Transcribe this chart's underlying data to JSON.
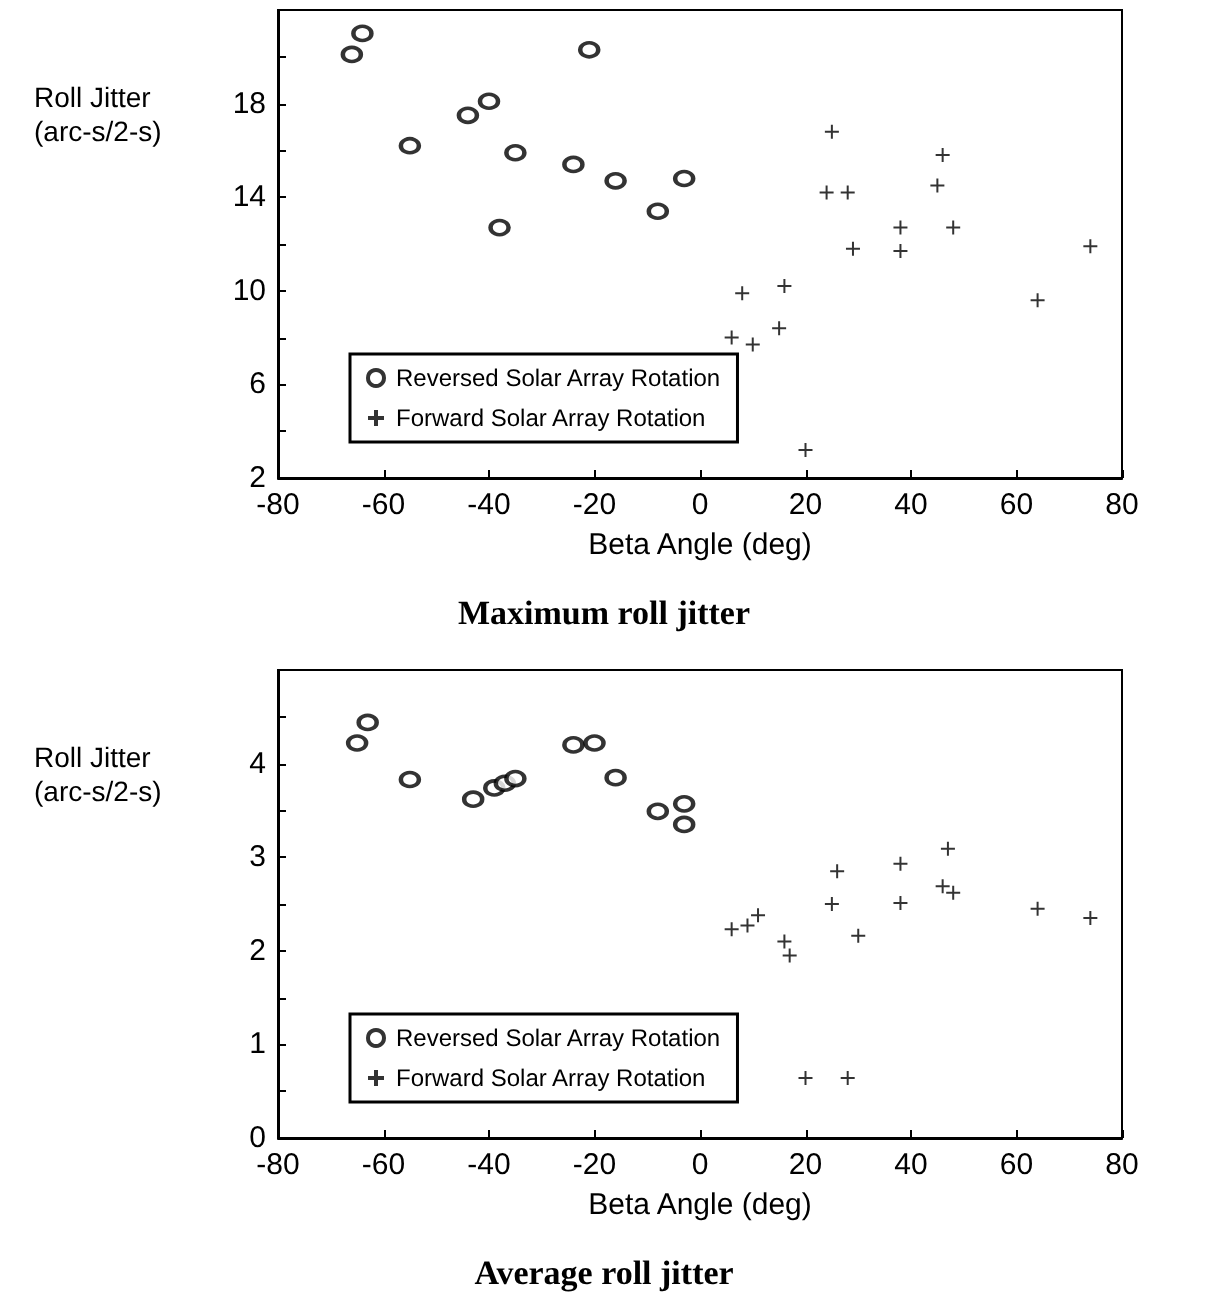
{
  "chart_data": [
    {
      "type": "scatter",
      "title": "Maximum roll jitter",
      "xlabel": "Beta Angle (deg)",
      "ylabel": "Roll Jitter\n(arc-s/2-s)",
      "series": [
        {
          "name": "Reversed Solar Array Rotation",
          "color": "#000000",
          "marker": "circle",
          "x": [
            -66,
            -64,
            -55,
            -44,
            -40,
            -38,
            -35,
            -24,
            -21,
            -16,
            -8,
            -3
          ],
          "values": [
            20.1,
            21.0,
            16.2,
            17.5,
            18.1,
            12.7,
            15.9,
            15.4,
            20.3,
            14.7,
            13.4,
            14.8
          ]
        },
        {
          "name": "Forward Solar Array Rotation",
          "color": "#000000",
          "marker": "cross",
          "x": [
            25,
            24,
            28,
            29,
            46,
            45,
            48,
            38,
            38,
            74,
            64,
            8,
            16,
            15,
            6,
            10,
            20
          ],
          "values": [
            16.8,
            14.2,
            14.2,
            11.8,
            15.8,
            14.5,
            12.7,
            12.7,
            11.7,
            11.9,
            9.6,
            9.9,
            10.2,
            8.4,
            8.0,
            7.7,
            3.2
          ]
        }
      ],
      "xlim": [
        -80,
        80
      ],
      "xticks": [
        -80,
        -60,
        -40,
        -20,
        0,
        20,
        40,
        60,
        80
      ],
      "ylim": [
        2,
        22
      ],
      "yticks": [
        2,
        {
          "value": 4,
          "label": null
        },
        6,
        {
          "value": 8,
          "label": null
        },
        10,
        {
          "value": 12,
          "label": null
        },
        14,
        {
          "value": 16,
          "label": null
        },
        18,
        {
          "value": 20,
          "label": null
        }
      ],
      "legend": "bottom left",
      "grid": false
    },
    {
      "type": "scatter",
      "title": "Average roll jitter",
      "xlabel": "Beta Angle (deg)",
      "ylabel": "Roll Jitter\n(arc-s/2-s)",
      "series": [
        {
          "name": "Reversed Solar Array Rotation",
          "color": "#000000",
          "marker": "circle",
          "x": [
            -65,
            -63,
            -55,
            -43,
            -39,
            -37,
            -35,
            -24,
            -20,
            -16,
            -8,
            -3,
            -3
          ],
          "values": [
            4.22,
            4.44,
            3.83,
            3.62,
            3.74,
            3.79,
            3.84,
            4.2,
            4.22,
            3.85,
            3.49,
            3.57,
            3.35
          ]
        },
        {
          "name": "Forward Solar Array Rotation",
          "color": "#000000",
          "marker": "cross",
          "x": [
            6,
            9,
            11,
            16,
            17,
            25,
            26,
            30,
            38,
            38,
            47,
            46,
            48,
            64,
            74,
            20,
            28
          ],
          "values": [
            2.23,
            2.27,
            2.38,
            2.1,
            1.95,
            2.5,
            2.85,
            2.16,
            2.93,
            2.51,
            3.09,
            2.69,
            2.62,
            2.45,
            2.35,
            0.64,
            0.64
          ]
        }
      ],
      "xlim": [
        -80,
        80
      ],
      "xticks": [
        -80,
        -60,
        -40,
        -20,
        0,
        20,
        40,
        60,
        80
      ],
      "ylim": [
        0,
        5
      ],
      "yticks": [
        0,
        {
          "value": 0.5,
          "label": null
        },
        1,
        {
          "value": 1.5,
          "label": null
        },
        2,
        {
          "value": 2.5,
          "label": null
        },
        3,
        {
          "value": 3.5,
          "label": null
        },
        4,
        {
          "value": 4.5,
          "label": null
        }
      ],
      "legend": "bottom left",
      "grid": false
    }
  ]
}
